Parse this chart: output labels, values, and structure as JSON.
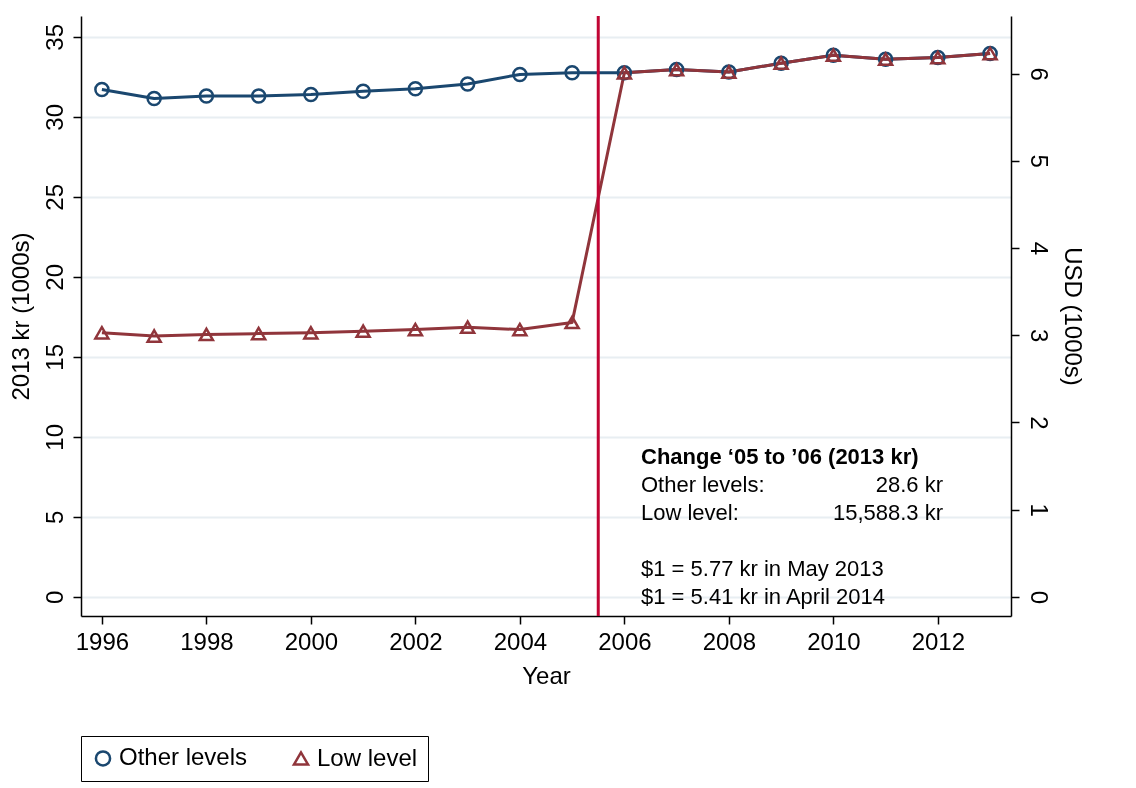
{
  "chart_data": {
    "type": "line",
    "xlabel": "Year",
    "ylabel": "2013 kr (1000s)",
    "y2label": "USD (1000s)",
    "x": [
      1996,
      1997,
      1998,
      1999,
      2000,
      2001,
      2002,
      2003,
      2004,
      2005,
      2006,
      2007,
      2008,
      2009,
      2010,
      2011,
      2012,
      2013
    ],
    "series": [
      {
        "name": "Other levels",
        "color": "#1a476f",
        "marker": "circle",
        "values": [
          31.7,
          31.15,
          31.3,
          31.3,
          31.4,
          31.6,
          31.75,
          32.05,
          32.65,
          32.75,
          32.75,
          32.95,
          32.8,
          33.35,
          33.85,
          33.6,
          33.7,
          33.95
        ]
      },
      {
        "name": "Low level",
        "color": "#90353b",
        "marker": "triangle",
        "values": [
          16.5,
          16.3,
          16.4,
          16.45,
          16.5,
          16.6,
          16.7,
          16.85,
          16.7,
          17.15,
          32.75,
          32.95,
          32.8,
          33.35,
          33.85,
          33.6,
          33.7,
          33.95
        ]
      }
    ],
    "xlim": [
      1995.6,
      2013.4
    ],
    "xticks": [
      1996,
      1998,
      2000,
      2002,
      2004,
      2006,
      2008,
      2010,
      2012
    ],
    "ylim": [
      -1.2,
      36.3
    ],
    "yticks": [
      0,
      5,
      10,
      15,
      20,
      25,
      30,
      35
    ],
    "y2lim": [
      -0.22,
      6.66
    ],
    "y2ticks": [
      0,
      1,
      2,
      3,
      4,
      5,
      6
    ],
    "ref_lines": [
      {
        "axis": "x",
        "value": 2005.5,
        "color": "#c10534"
      }
    ],
    "annotations": [
      "Change ‘05 to ’06 (2013 kr)",
      "Other levels:",
      "28.6 kr",
      "Low level:",
      "15,588.3 kr",
      "$1 = 5.77 kr in May 2013",
      "$1 = 5.41 kr in April 2014"
    ],
    "grid": "y",
    "legend": "bottom",
    "line_style": "solid"
  }
}
